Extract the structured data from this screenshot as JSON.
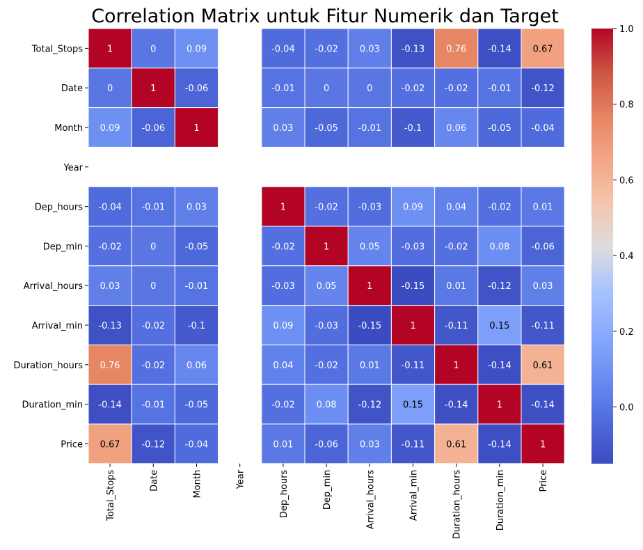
{
  "chart_data": {
    "type": "heatmap",
    "title": "Correlation Matrix untuk Fitur Numerik dan Target",
    "xlabel": "",
    "ylabel": "",
    "labels": [
      "Total_Stops",
      "Date",
      "Month",
      "Year",
      "Dep_hours",
      "Dep_min",
      "Arrival_hours",
      "Arrival_min",
      "Duration_hours",
      "Duration_min",
      "Price"
    ],
    "matrix": [
      [
        1,
        0,
        0.09,
        null,
        -0.04,
        -0.02,
        0.03,
        -0.13,
        0.76,
        -0.14,
        0.67
      ],
      [
        0,
        1,
        -0.06,
        null,
        -0.01,
        0,
        0,
        -0.02,
        -0.02,
        -0.01,
        -0.12
      ],
      [
        0.09,
        -0.06,
        1,
        null,
        0.03,
        -0.05,
        -0.01,
        -0.1,
        0.06,
        -0.05,
        -0.04
      ],
      [
        null,
        null,
        null,
        null,
        null,
        null,
        null,
        null,
        null,
        null,
        null
      ],
      [
        -0.04,
        -0.01,
        0.03,
        null,
        1,
        -0.02,
        -0.03,
        0.09,
        0.04,
        -0.02,
        0.01
      ],
      [
        -0.02,
        0,
        -0.05,
        null,
        -0.02,
        1,
        0.05,
        -0.03,
        -0.02,
        0.08,
        -0.06
      ],
      [
        0.03,
        0,
        -0.01,
        null,
        -0.03,
        0.05,
        1,
        -0.15,
        0.01,
        -0.12,
        0.03
      ],
      [
        -0.13,
        -0.02,
        -0.1,
        null,
        0.09,
        -0.03,
        -0.15,
        1,
        -0.11,
        0.15,
        -0.11
      ],
      [
        0.76,
        -0.02,
        0.06,
        null,
        0.04,
        -0.02,
        0.01,
        -0.11,
        1,
        -0.14,
        0.61
      ],
      [
        -0.14,
        -0.01,
        -0.05,
        null,
        -0.02,
        0.08,
        -0.12,
        0.15,
        -0.14,
        1,
        -0.14
      ],
      [
        0.67,
        -0.12,
        -0.04,
        null,
        0.01,
        -0.06,
        0.03,
        -0.11,
        0.61,
        -0.14,
        1
      ]
    ],
    "colormap": "coolwarm",
    "vmin": -0.15,
    "vmax": 1.0,
    "colorbar_ticks": [
      0.0,
      0.2,
      0.4,
      0.6,
      0.8,
      1.0
    ],
    "colorbar_tick_labels": [
      "0.0",
      "0.2",
      "0.4",
      "0.6",
      "0.8",
      "1.0"
    ],
    "annotations": true,
    "cell_line_color": "#ffffff",
    "grid": false
  }
}
